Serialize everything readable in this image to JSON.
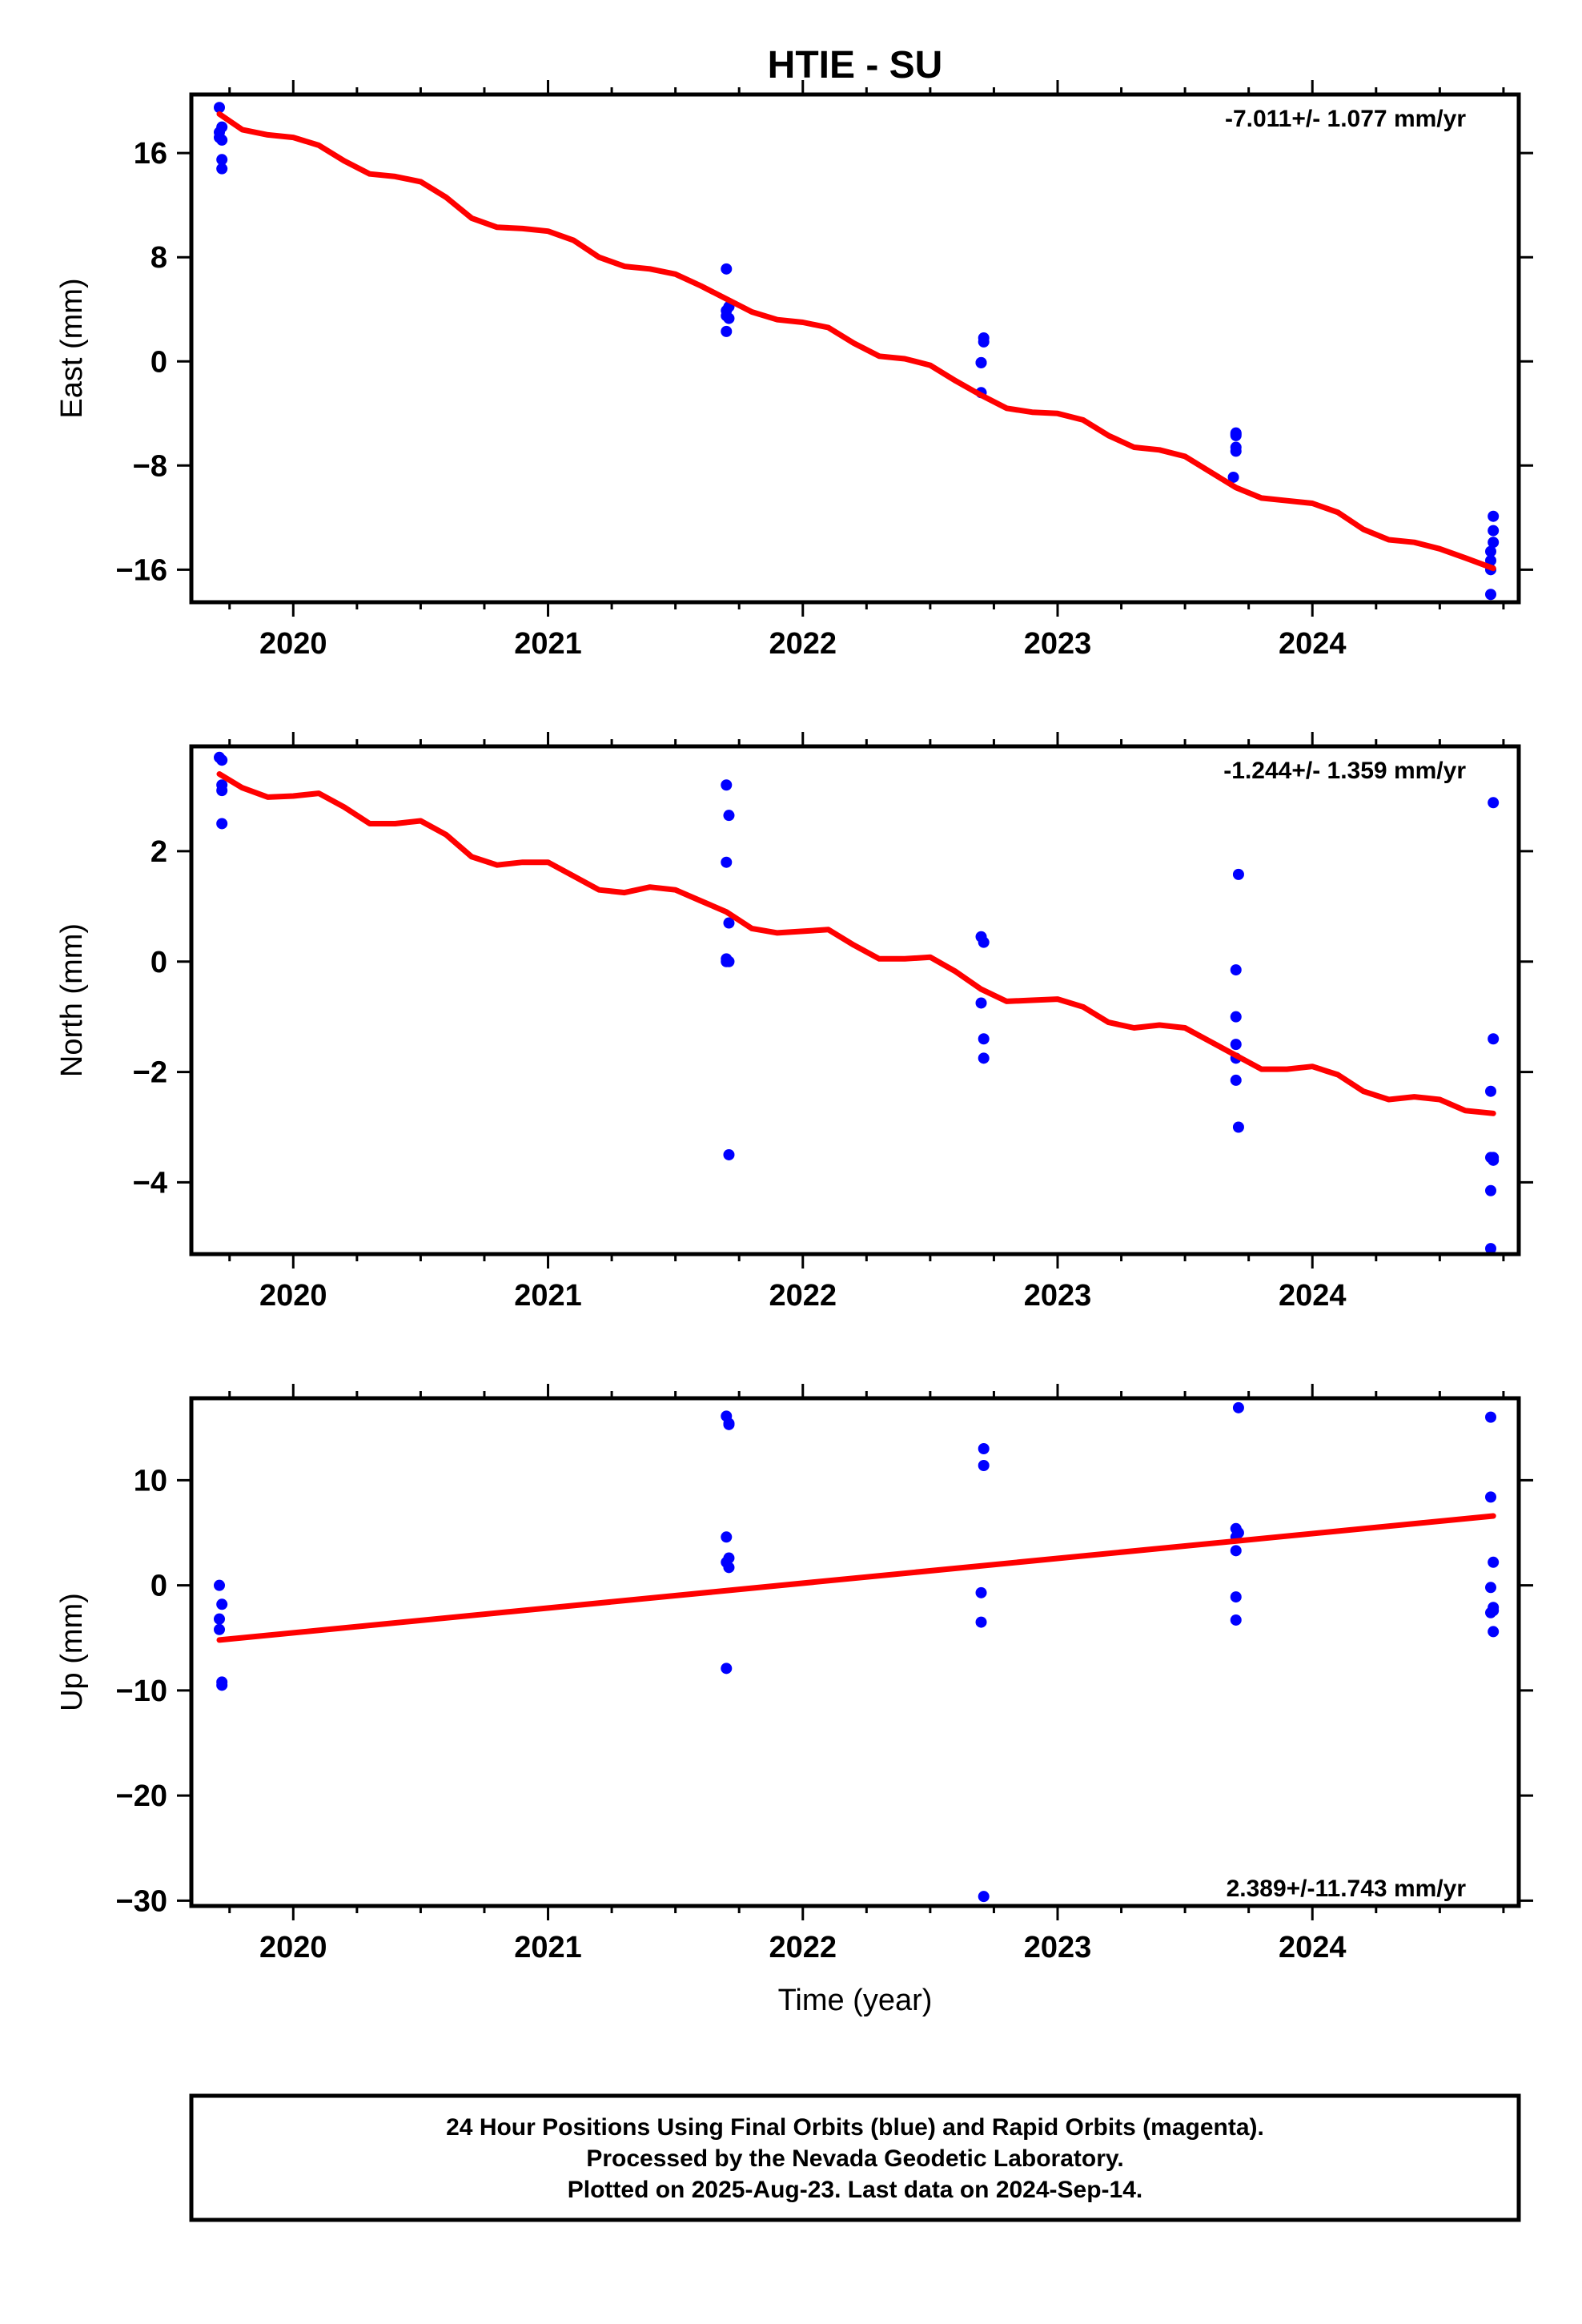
{
  "colors": {
    "data_points": "#0000ff",
    "model_line": "#ff0000"
  },
  "chart_data": [
    {
      "type": "scatter",
      "title": "HTIE - SU",
      "ylabel": "East (mm)",
      "xlabel": "",
      "xlim": [
        2019.6,
        2024.81
      ],
      "ylim": [
        -18.5,
        20.5
      ],
      "yticks": [
        -16,
        -8,
        0,
        8,
        16
      ],
      "xticks": [
        2020,
        2021,
        2022,
        2023,
        2024
      ],
      "rate_label": "-7.011+/- 1.077 mm/yr",
      "rate_position": "top-right",
      "points": {
        "x": [
          2019.71,
          2019.71,
          2019.71,
          2019.72,
          2019.72,
          2019.72,
          2019.72,
          2021.7,
          2021.7,
          2021.7,
          2021.7,
          2021.71,
          2021.71,
          2022.7,
          2022.7,
          2022.7,
          2022.71,
          2022.71,
          2023.69,
          2023.7,
          2023.7,
          2023.7,
          2023.7,
          2023.7,
          2024.7,
          2024.7,
          2024.7,
          2024.7,
          2024.71,
          2024.71,
          2024.71
        ],
        "y": [
          19.5,
          17.6,
          17.2,
          18.0,
          17.0,
          15.5,
          14.8,
          2.3,
          3.5,
          3.9,
          7.1,
          4.2,
          3.3,
          -2.4,
          -0.1,
          -0.1,
          1.5,
          1.8,
          -8.9,
          -5.7,
          -5.5,
          -6.9,
          -6.6,
          -5.6,
          -17.9,
          -16.0,
          -15.3,
          -14.6,
          -13.9,
          -13.0,
          -11.9
        ]
      },
      "model": {
        "x": [
          2019.71,
          2019.8,
          2019.9,
          2020.0,
          2020.1,
          2020.2,
          2020.3,
          2020.4,
          2020.5,
          2020.6,
          2020.7,
          2020.8,
          2020.9,
          2021.0,
          2021.1,
          2021.2,
          2021.3,
          2021.4,
          2021.5,
          2021.6,
          2021.7,
          2021.8,
          2021.9,
          2022.0,
          2022.1,
          2022.2,
          2022.3,
          2022.4,
          2022.5,
          2022.6,
          2022.7,
          2022.8,
          2022.9,
          2023.0,
          2023.1,
          2023.2,
          2023.3,
          2023.4,
          2023.5,
          2023.6,
          2023.7,
          2023.8,
          2023.9,
          2024.0,
          2024.1,
          2024.2,
          2024.3,
          2024.4,
          2024.5,
          2024.6,
          2024.71
        ],
        "y": [
          19.0,
          17.8,
          17.4,
          17.2,
          16.6,
          15.4,
          14.4,
          14.2,
          13.8,
          12.6,
          11.0,
          10.3,
          10.2,
          10.0,
          9.3,
          8.0,
          7.3,
          7.1,
          6.7,
          5.8,
          4.8,
          3.8,
          3.2,
          3.0,
          2.6,
          1.4,
          0.4,
          0.2,
          -0.3,
          -1.5,
          -2.6,
          -3.6,
          -3.9,
          -4.0,
          -4.5,
          -5.7,
          -6.6,
          -6.8,
          -7.3,
          -8.5,
          -9.7,
          -10.5,
          -10.7,
          -10.9,
          -11.6,
          -12.9,
          -13.7,
          -13.9,
          -14.4,
          -15.1,
          -15.9
        ]
      }
    },
    {
      "type": "scatter",
      "title": "",
      "ylabel": "North (mm)",
      "xlabel": "",
      "xlim": [
        2019.6,
        2024.81
      ],
      "ylim": [
        -5.3,
        3.9
      ],
      "yticks": [
        -4,
        -2,
        0,
        2
      ],
      "xticks": [
        2020,
        2021,
        2022,
        2023,
        2024
      ],
      "rate_label": "-1.244+/- 1.359 mm/yr",
      "rate_position": "top-right",
      "points": {
        "x": [
          2019.71,
          2019.72,
          2019.72,
          2019.72,
          2019.72,
          2021.7,
          2021.7,
          2021.7,
          2021.7,
          2021.71,
          2021.71,
          2021.71,
          2021.71,
          2022.7,
          2022.7,
          2022.71,
          2022.71,
          2022.71,
          2023.7,
          2023.7,
          2023.7,
          2023.7,
          2023.7,
          2023.71,
          2023.71,
          2024.7,
          2024.7,
          2024.7,
          2024.7,
          2024.71,
          2024.71,
          2024.71,
          2024.71
        ],
        "y": [
          3.7,
          3.2,
          3.1,
          3.65,
          2.5,
          1.8,
          0.05,
          0.0,
          3.2,
          2.65,
          0.7,
          0.0,
          -3.5,
          -0.75,
          0.45,
          0.35,
          -1.4,
          -1.75,
          -0.15,
          -1.0,
          -1.5,
          -1.75,
          -2.15,
          -3.0,
          1.58,
          -5.2,
          -4.15,
          -3.55,
          -2.35,
          -3.55,
          -1.4,
          2.88,
          -3.6
        ]
      },
      "model": {
        "x": [
          2019.71,
          2019.8,
          2019.9,
          2020.0,
          2020.1,
          2020.2,
          2020.3,
          2020.4,
          2020.5,
          2020.6,
          2020.7,
          2020.8,
          2020.9,
          2021.0,
          2021.1,
          2021.2,
          2021.3,
          2021.4,
          2021.5,
          2021.6,
          2021.7,
          2021.8,
          2021.9,
          2022.0,
          2022.1,
          2022.2,
          2022.3,
          2022.4,
          2022.5,
          2022.6,
          2022.7,
          2022.8,
          2022.9,
          2023.0,
          2023.1,
          2023.2,
          2023.3,
          2023.4,
          2023.5,
          2023.6,
          2023.7,
          2023.8,
          2023.9,
          2024.0,
          2024.1,
          2024.2,
          2024.3,
          2024.4,
          2024.5,
          2024.6,
          2024.71
        ],
        "y": [
          3.4,
          3.15,
          2.98,
          3.0,
          3.05,
          2.8,
          2.5,
          2.5,
          2.55,
          2.3,
          1.9,
          1.75,
          1.8,
          1.8,
          1.55,
          1.3,
          1.25,
          1.35,
          1.3,
          1.1,
          0.9,
          0.6,
          0.52,
          0.55,
          0.58,
          0.3,
          0.05,
          0.05,
          0.08,
          -0.18,
          -0.5,
          -0.72,
          -0.7,
          -0.68,
          -0.82,
          -1.1,
          -1.2,
          -1.15,
          -1.2,
          -1.45,
          -1.7,
          -1.95,
          -1.95,
          -1.9,
          -2.05,
          -2.35,
          -2.5,
          -2.45,
          -2.5,
          -2.7,
          -2.75
        ]
      }
    },
    {
      "type": "scatter",
      "title": "",
      "ylabel": "Up (mm)",
      "xlabel": "Time (year)",
      "xlim": [
        2019.6,
        2024.81
      ],
      "ylim": [
        -30.5,
        17.8
      ],
      "yticks": [
        -30,
        -20,
        -10,
        0,
        10
      ],
      "xticks": [
        2020,
        2021,
        2022,
        2023,
        2024
      ],
      "rate_label": "2.389+/-11.743 mm/yr",
      "rate_position": "bottom-right",
      "points": {
        "x": [
          2019.71,
          2019.71,
          2019.71,
          2019.72,
          2019.72,
          2019.72,
          2021.7,
          2021.7,
          2021.7,
          2021.7,
          2021.71,
          2021.71,
          2021.71,
          2021.71,
          2022.7,
          2022.7,
          2022.71,
          2022.71,
          2022.71,
          2023.7,
          2023.7,
          2023.7,
          2023.7,
          2023.7,
          2023.71,
          2023.71,
          2024.7,
          2024.7,
          2024.7,
          2024.7,
          2024.71,
          2024.71,
          2024.71,
          2024.71
        ],
        "y": [
          0.0,
          -3.2,
          -4.2,
          -1.8,
          -9.2,
          -9.5,
          16.1,
          4.6,
          2.2,
          -7.9,
          15.3,
          2.6,
          1.7,
          15.4,
          -0.7,
          -3.5,
          13.0,
          11.4,
          -29.6,
          5.4,
          4.6,
          3.3,
          -3.3,
          -1.1,
          16.9,
          5.0,
          16.0,
          8.4,
          -0.2,
          -2.6,
          2.2,
          -2.1,
          -4.4,
          -2.4
        ]
      },
      "model": {
        "x": [
          2019.71,
          2024.71
        ],
        "y": [
          -5.2,
          6.6
        ]
      }
    }
  ],
  "footer": {
    "line1": "24 Hour Positions Using Final Orbits (blue) and Rapid Orbits (magenta).",
    "line2": "Processed by the Nevada Geodetic Laboratory.",
    "line3": "Plotted on 2025-Aug-23. Last data on 2024-Sep-14."
  }
}
